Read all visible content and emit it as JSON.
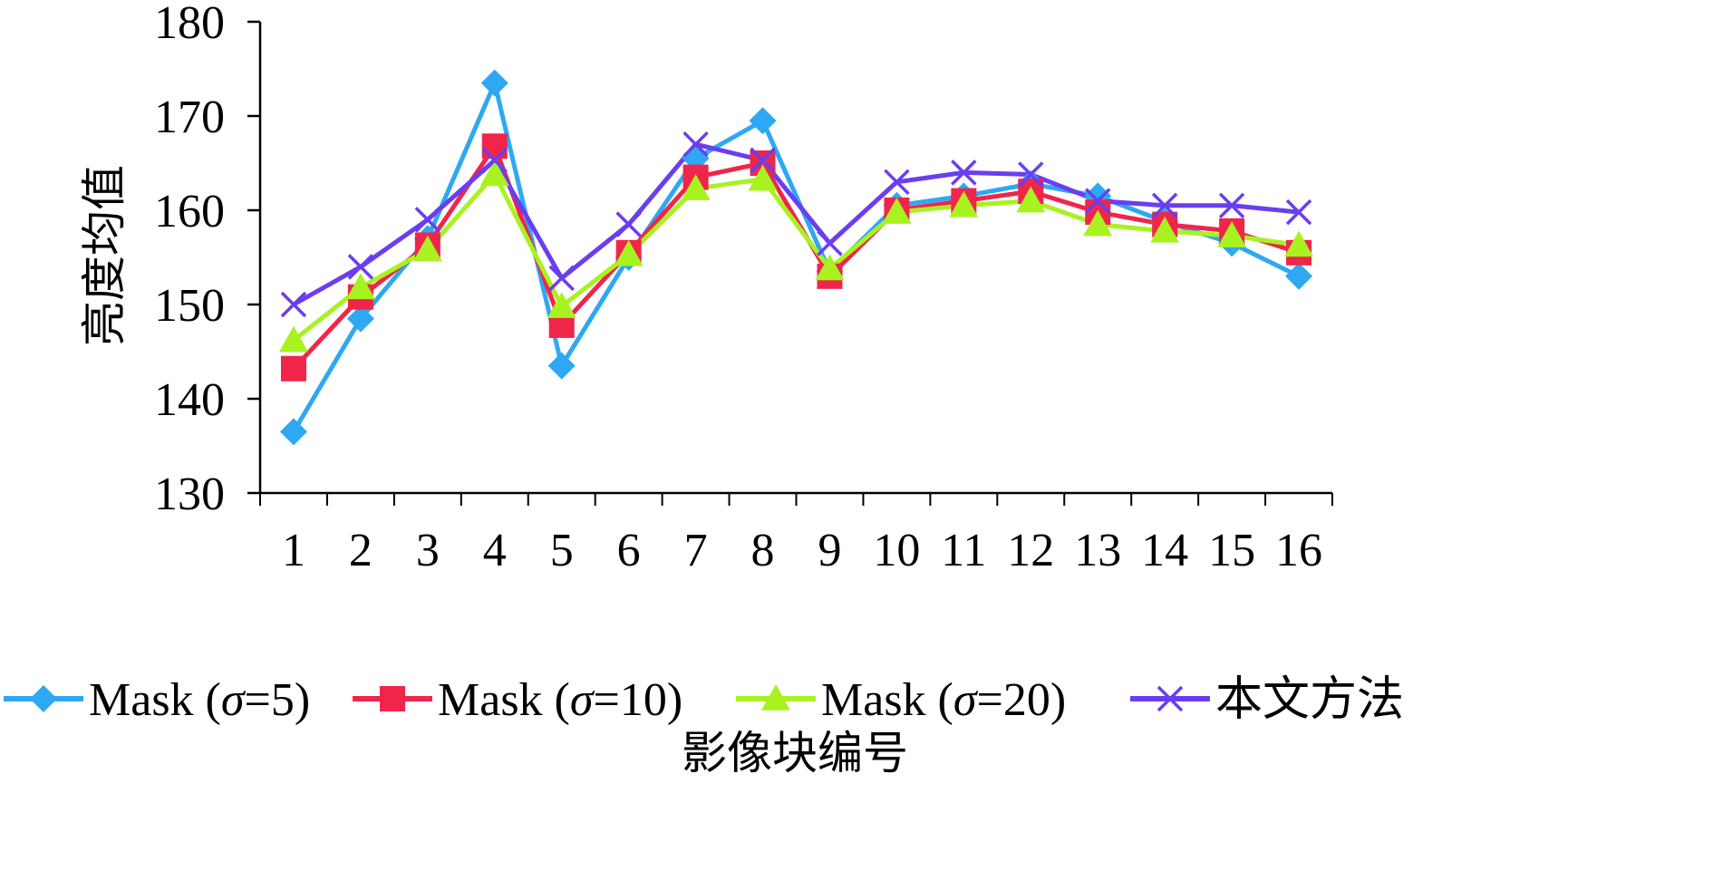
{
  "chart_data": {
    "type": "line",
    "title": "",
    "xlabel": "影像块编号",
    "ylabel": "亮度均值",
    "categories": [
      "1",
      "2",
      "3",
      "4",
      "5",
      "6",
      "7",
      "8",
      "9",
      "10",
      "11",
      "12",
      "13",
      "14",
      "15",
      "16"
    ],
    "ylim": [
      130,
      180
    ],
    "yticks": [
      "130",
      "140",
      "150",
      "160",
      "170",
      "180"
    ],
    "grid": false,
    "legend_position": "bottom",
    "series": [
      {
        "name": "Mask (σ=5)",
        "legend": {
          "prefix": "Mask (",
          "sigma": "σ",
          "suffix": "=5)"
        },
        "color": "#2EA8F2",
        "marker": "diamond",
        "values": [
          136.5,
          148.5,
          157,
          173.5,
          143.5,
          155,
          165.5,
          169.5,
          153.5,
          160.5,
          161.5,
          162.8,
          161.5,
          158.8,
          156.5,
          153
        ]
      },
      {
        "name": "Mask (σ=10)",
        "legend": {
          "prefix": "Mask (",
          "sigma": "σ",
          "suffix": "=10)"
        },
        "color": "#F0254A",
        "marker": "square",
        "values": [
          143.2,
          150.8,
          156.3,
          166.8,
          147.8,
          155.5,
          163.5,
          165,
          153,
          160,
          161,
          162,
          159.8,
          158.5,
          157.8,
          155.5
        ]
      },
      {
        "name": "Mask (σ=20)",
        "legend": {
          "prefix": "Mask (",
          "sigma": "σ",
          "suffix": "=20)"
        },
        "color": "#A8F220",
        "marker": "triangle",
        "values": [
          146.2,
          151.8,
          155.8,
          163.8,
          149.8,
          155.3,
          162.3,
          163.3,
          153.8,
          159.8,
          160.5,
          161,
          158.5,
          157.8,
          157.3,
          156.3
        ]
      },
      {
        "name": "本文方法",
        "legend": {
          "prefix": "本文方法",
          "sigma": "",
          "suffix": ""
        },
        "color": "#6A3EF0",
        "marker": "x",
        "values": [
          150,
          154,
          159,
          165.3,
          152.8,
          158.5,
          167,
          165.3,
          156.5,
          163,
          164,
          163.8,
          161,
          160.5,
          160.5,
          159.8
        ]
      }
    ]
  }
}
